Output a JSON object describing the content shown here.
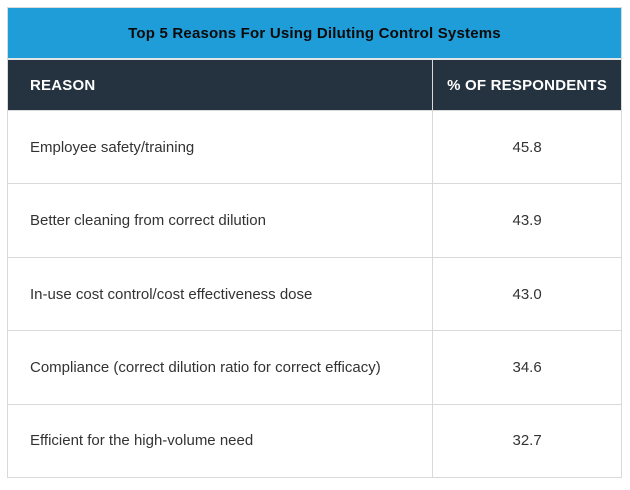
{
  "banner": {
    "title": "Top 5 Reasons For Using Diluting Control Systems"
  },
  "table": {
    "headers": {
      "reason": "REASON",
      "value": "% OF RESPONDENTS"
    },
    "rows": [
      {
        "reason": "Employee safety/training",
        "value": "45.8"
      },
      {
        "reason": "Better cleaning from correct dilution",
        "value": "43.9"
      },
      {
        "reason": "In-use cost control/cost effectiveness dose",
        "value": "43.0"
      },
      {
        "reason": "Compliance (correct dilution ratio for correct efficacy)",
        "value": "34.6"
      },
      {
        "reason": "Efficient for the high-volume need",
        "value": "32.7"
      }
    ]
  },
  "colors": {
    "banner_blue": "#1f9dd9",
    "header_dark": "#25323f",
    "border_gray": "#d9d9d9",
    "body_text": "#333333",
    "banner_text": "#0a0a0a",
    "header_text": "#ffffff"
  },
  "chart_data": {
    "type": "table",
    "title": "Top 5 Reasons For Using Diluting Control Systems",
    "columns": [
      "REASON",
      "% OF RESPONDENTS"
    ],
    "rows": [
      [
        "Employee safety/training",
        45.8
      ],
      [
        "Better cleaning from correct dilution",
        43.9
      ],
      [
        "In-use cost control/cost effectiveness dose",
        43.0
      ],
      [
        "Compliance (correct dilution ratio for correct efficacy)",
        34.6
      ],
      [
        "Efficient for the high-volume need",
        32.7
      ]
    ]
  }
}
